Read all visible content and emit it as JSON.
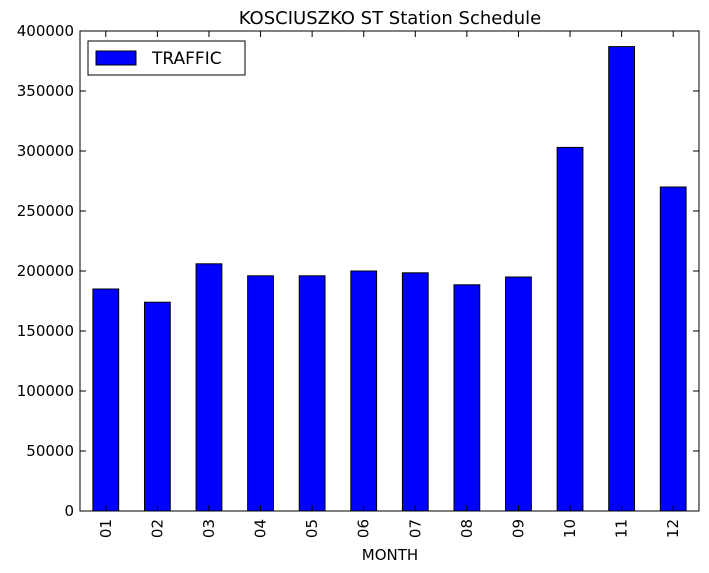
{
  "chart_data": {
    "type": "bar",
    "title": "KOSCIUSZKO ST Station Schedule",
    "xlabel": "MONTH",
    "ylabel": "",
    "categories": [
      "01",
      "02",
      "03",
      "04",
      "05",
      "06",
      "07",
      "08",
      "09",
      "10",
      "11",
      "12"
    ],
    "series": [
      {
        "name": "TRAFFIC",
        "color": "#0000ff",
        "values": [
          185000,
          174000,
          206000,
          196000,
          196000,
          200000,
          198500,
          188500,
          195000,
          303000,
          387000,
          270000
        ]
      }
    ],
    "ylim": [
      0,
      400000
    ],
    "yticks": [
      "0",
      "50000",
      "100000",
      "150000",
      "200000",
      "250000",
      "300000",
      "350000",
      "400000"
    ],
    "grid": false,
    "legend_position": "top-left"
  }
}
